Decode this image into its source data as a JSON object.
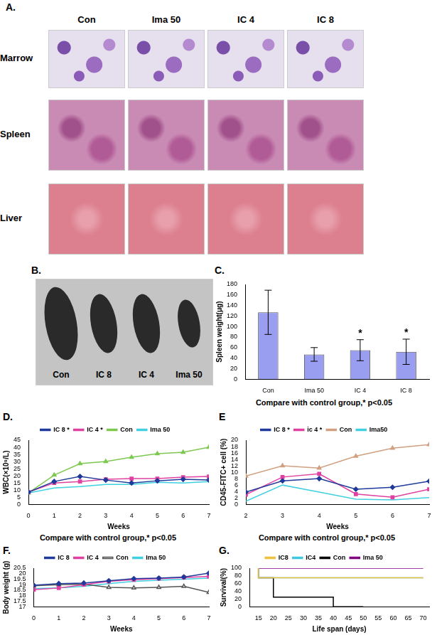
{
  "figure": {
    "panel_a": {
      "panel": "A.",
      "columns": [
        "Con",
        "Ima 50",
        "IC 4",
        "IC 8"
      ],
      "rows": [
        "Marrow",
        "Spleen",
        "Liver"
      ]
    },
    "panel_b": {
      "panel": "B.",
      "labels": [
        "Con",
        "IC 8",
        "IC 4",
        "Ima 50"
      ]
    }
  },
  "chart_data": [
    {
      "panel": "C.",
      "type": "bar",
      "categories": [
        "Con",
        "Ima 50",
        "IC 4",
        "IC 8"
      ],
      "values": [
        127,
        47,
        55,
        52
      ],
      "errors": [
        42,
        13,
        20,
        24
      ],
      "color": "#9a9ef0",
      "y_label": "Spleen weight(μg)",
      "ylim": [
        0,
        180
      ],
      "yticks": [
        0,
        20,
        40,
        60,
        80,
        100,
        120,
        140,
        160,
        180
      ],
      "annotations": [
        {
          "text": "*",
          "category": "IC 4"
        },
        {
          "text": "*",
          "category": "IC 8"
        }
      ],
      "caption": "Compare with control group,* p<0.05",
      "grid": false
    },
    {
      "panel": "D.",
      "type": "line",
      "x": [
        0,
        1,
        2,
        3,
        4,
        5,
        6,
        7
      ],
      "x_label": "Weeks",
      "y_label": "WBC(×10⁹/L)",
      "xlim": [
        0,
        7
      ],
      "xticks": [
        0,
        1,
        2,
        3,
        4,
        5,
        6,
        7
      ],
      "ylim": [
        0,
        45
      ],
      "yticks": [
        0,
        5,
        10,
        15,
        20,
        25,
        30,
        35,
        40,
        45
      ],
      "series": [
        {
          "name": "IC 8 *",
          "color": "#1f3a9a",
          "marker": "diamond",
          "values": [
            8.5,
            16,
            19.5,
            17,
            15,
            16.5,
            17.5,
            17
          ]
        },
        {
          "name": "IC 4 *",
          "color": "#e040a0",
          "marker": "square",
          "values": [
            8.5,
            15,
            16,
            17.5,
            18,
            18,
            19,
            19.5
          ]
        },
        {
          "name": "Con",
          "color": "#7ec850",
          "marker": "triangle",
          "values": [
            8,
            20.5,
            28.5,
            30,
            33,
            35.5,
            36.5,
            40
          ]
        },
        {
          "name": "Ima 50",
          "color": "#40d0e0",
          "marker": "none",
          "values": [
            8,
            11.5,
            12.5,
            14,
            14,
            15.5,
            15,
            16
          ]
        }
      ],
      "legend": "top",
      "caption": "Compare with control group,* p<0.05",
      "grid": false
    },
    {
      "panel": "E",
      "type": "line",
      "x": [
        2,
        3,
        4,
        5,
        6,
        7
      ],
      "x_label": "Weeks",
      "y_label": "CD45-FITC+ cell (%)",
      "xlim": [
        2,
        7
      ],
      "xticks": [
        2,
        3,
        4,
        5,
        6,
        7
      ],
      "ylim": [
        0,
        20
      ],
      "yticks": [
        0,
        2,
        4,
        6,
        8,
        10,
        12,
        14,
        16,
        18,
        20
      ],
      "series": [
        {
          "name": "IC 8 *",
          "color": "#1f3a9a",
          "marker": "diamond",
          "values": [
            3.8,
            7.3,
            8,
            4.7,
            5.3,
            7.2
          ]
        },
        {
          "name": "ic 4 *",
          "color": "#e040a0",
          "marker": "square",
          "values": [
            3,
            8.5,
            9.5,
            3.2,
            2.2,
            4.7
          ]
        },
        {
          "name": "Con",
          "color": "#d0a080",
          "marker": "triangle",
          "values": [
            8.8,
            12,
            11.3,
            15,
            17.5,
            18.6
          ]
        },
        {
          "name": "Ima50",
          "color": "#40d0e0",
          "marker": "none",
          "values": [
            1,
            6,
            3.8,
            1.6,
            1.4,
            2.1
          ]
        }
      ],
      "legend": "top",
      "caption": "Compare with control group,* p<0.05",
      "grid": false
    },
    {
      "panel": "F.",
      "type": "line",
      "x": [
        0,
        1,
        2,
        3,
        4,
        5,
        6,
        7
      ],
      "x_label": "Weeks",
      "y_label": "Body weight (g)",
      "xlim": [
        0,
        7
      ],
      "xticks": [
        0,
        1,
        2,
        3,
        4,
        5,
        6,
        7
      ],
      "ylim": [
        17,
        20.5
      ],
      "yticks": [
        17,
        17.5,
        18,
        18.5,
        19,
        19.5,
        20,
        20.5
      ],
      "series": [
        {
          "name": "IC 8",
          "color": "#1f3a9a",
          "marker": "diamond",
          "values": [
            18.95,
            19.1,
            19.15,
            19.35,
            19.55,
            19.6,
            19.7,
            20.05
          ]
        },
        {
          "name": "IC 4",
          "color": "#e040a0",
          "marker": "square",
          "values": [
            18.55,
            18.7,
            19.0,
            19.3,
            19.45,
            19.55,
            19.65,
            19.75
          ]
        },
        {
          "name": "Con",
          "color": "#555555",
          "marker": "open_triangle",
          "values": [
            18.9,
            19.0,
            19.05,
            18.75,
            18.7,
            18.75,
            18.85,
            18.3
          ]
        },
        {
          "name": "Ima 50",
          "color": "#40d0e0",
          "marker": "none",
          "values": [
            18.65,
            18.7,
            18.85,
            19.1,
            19.3,
            19.4,
            19.5,
            19.6
          ]
        }
      ],
      "legend": "top",
      "grid": false
    },
    {
      "panel": "G.",
      "type": "line",
      "x_label": "Life span (days)",
      "y_label": "Survival(%)",
      "xlim": [
        12,
        72
      ],
      "xticks": [
        15,
        20,
        25,
        30,
        35,
        40,
        45,
        50,
        55,
        60,
        65,
        70
      ],
      "ylim": [
        0,
        100
      ],
      "yticks": [
        0,
        20,
        40,
        60,
        80,
        100
      ],
      "line_style": "stepped",
      "series": [
        {
          "name": "IC8",
          "color": "#f0c040",
          "marker": "none",
          "x": [
            15,
            45,
            70
          ],
          "values": [
            100,
            75,
            75
          ]
        },
        {
          "name": "IC4",
          "color": "#40c8e0",
          "marker": "none",
          "x": [
            15,
            50,
            70
          ],
          "values": [
            100,
            75,
            75
          ]
        },
        {
          "name": "Con",
          "color": "#000000",
          "marker": "none",
          "x": [
            15,
            20,
            40,
            50
          ],
          "values": [
            100,
            75,
            25,
            0
          ]
        },
        {
          "name": "Ima 50",
          "color": "#800080",
          "marker": "none",
          "x": [
            15,
            70
          ],
          "values": [
            100,
            100
          ]
        }
      ],
      "legend": "top",
      "grid": false
    }
  ]
}
